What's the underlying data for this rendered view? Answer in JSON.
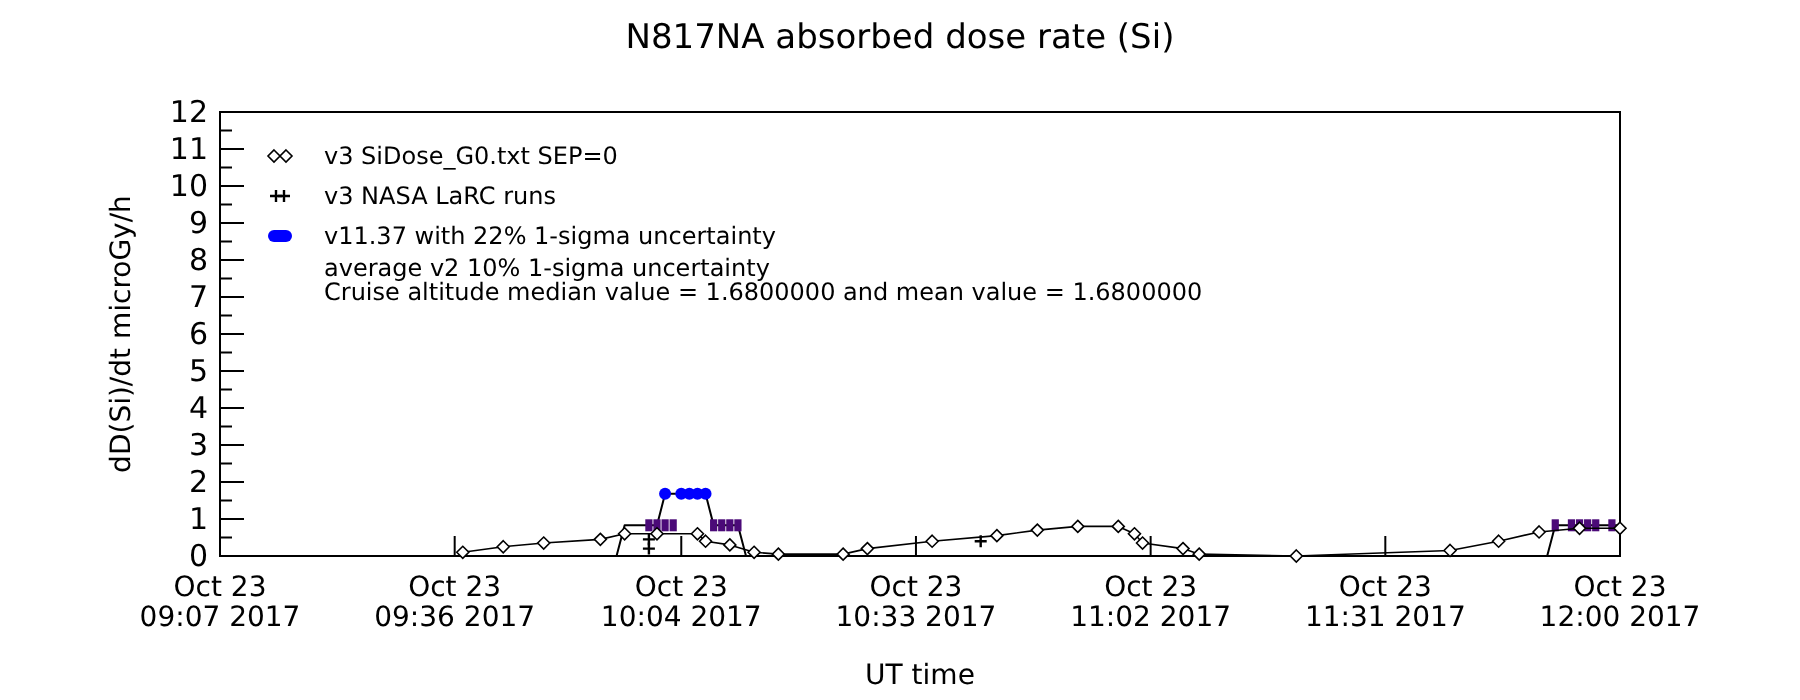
{
  "chart_data": {
    "type": "line",
    "title": "N817NA absorbed dose rate (Si)",
    "xlabel": "UT time",
    "ylabel": "dD(Si)/dt microGy/h",
    "annotations": [
      "average v2 10% 1-sigma uncertainty",
      "Cruise altitude median value = 1.6800000 and mean value = 1.6800000"
    ],
    "xlim": [
      "2017-10-23T09:07",
      "2017-10-23T12:00"
    ],
    "xticks": [
      {
        "value": "2017-10-23T09:07",
        "label": "Oct 23\n09:07 2017"
      },
      {
        "value": "2017-10-23T09:36",
        "label": "Oct 23\n09:36 2017"
      },
      {
        "value": "2017-10-23T10:04",
        "label": "Oct 23\n10:04 2017"
      },
      {
        "value": "2017-10-23T10:33",
        "label": "Oct 23\n10:33 2017"
      },
      {
        "value": "2017-10-23T11:02",
        "label": "Oct 23\n11:02 2017"
      },
      {
        "value": "2017-10-23T11:31",
        "label": "Oct 23\n11:31 2017"
      },
      {
        "value": "2017-10-23T12:00",
        "label": "Oct 23\n12:00 2017"
      }
    ],
    "ylim": [
      0,
      12
    ],
    "yticks": [
      0,
      {
        "value": 0.5,
        "label": null
      },
      1,
      {
        "value": 1.5,
        "label": null
      },
      2,
      {
        "value": 2.5,
        "label": null
      },
      3,
      {
        "value": 3.5,
        "label": null
      },
      4,
      {
        "value": 4.5,
        "label": null
      },
      5,
      {
        "value": 5.5,
        "label": null
      },
      6,
      {
        "value": 6.5,
        "label": null
      },
      7,
      {
        "value": 7.5,
        "label": null
      },
      8,
      {
        "value": 8.5,
        "label": null
      },
      9,
      {
        "value": 9.5,
        "label": null
      },
      10,
      {
        "value": 10.5,
        "label": null
      },
      11,
      {
        "value": 11.5,
        "label": null
      },
      12
    ],
    "grid": false,
    "legend": "top left",
    "series": [
      {
        "name": "v3 SiDose_G0.txt SEP=0",
        "color": "#000000",
        "marker": "diamond",
        "line_style": "solid",
        "x": [
          "2017-10-23T09:37",
          "2017-10-23T09:42",
          "2017-10-23T09:47",
          "2017-10-23T09:54",
          "2017-10-23T09:57",
          "2017-10-23T10:01",
          "2017-10-23T10:06",
          "2017-10-23T10:07",
          "2017-10-23T10:10",
          "2017-10-23T10:13",
          "2017-10-23T10:16",
          "2017-10-23T10:24",
          "2017-10-23T10:27",
          "2017-10-23T10:35",
          "2017-10-23T10:43",
          "2017-10-23T10:48",
          "2017-10-23T10:53",
          "2017-10-23T10:58",
          "2017-10-23T11:00",
          "2017-10-23T11:01",
          "2017-10-23T11:06",
          "2017-10-23T11:08",
          "2017-10-23T11:20",
          "2017-10-23T11:39",
          "2017-10-23T11:45",
          "2017-10-23T11:50",
          "2017-10-23T11:55",
          "2017-10-23T12:00"
        ],
        "values": [
          0.1,
          0.25,
          0.35,
          0.45,
          0.6,
          0.6,
          0.6,
          0.4,
          0.3,
          0.1,
          0.05,
          0.05,
          0.2,
          0.4,
          0.55,
          0.7,
          0.8,
          0.8,
          0.6,
          0.35,
          0.2,
          0.05,
          0.0,
          0.15,
          0.4,
          0.65,
          0.75,
          0.75
        ]
      },
      {
        "name": "v3 NASA LaRC runs",
        "type": "scatter",
        "color": "#000000",
        "marker": "cross",
        "x": [
          "2017-10-23T10:00",
          "2017-10-23T10:00",
          "2017-10-23T10:41"
        ],
        "values": [
          0.45,
          0.2,
          0.4
        ]
      },
      {
        "name": "v11.37 with 22% 1-sigma uncertainty",
        "type": "scatter",
        "color": "#0000ff",
        "marker": "circle",
        "x": [
          "2017-10-23T10:02",
          "2017-10-23T10:04",
          "2017-10-23T10:05",
          "2017-10-23T10:06",
          "2017-10-23T10:07"
        ],
        "values": [
          1.68,
          1.68,
          1.68,
          1.68,
          1.68
        ]
      },
      {
        "type": "scatter",
        "color": "#4b0a78",
        "marker": "square",
        "x": [
          "2017-10-23T10:00",
          "2017-10-23T10:01",
          "2017-10-23T10:02",
          "2017-10-23T10:03",
          "2017-10-23T10:08",
          "2017-10-23T10:09",
          "2017-10-23T10:10",
          "2017-10-23T10:11",
          "2017-10-23T11:52",
          "2017-10-23T11:54",
          "2017-10-23T11:55",
          "2017-10-23T11:56",
          "2017-10-23T11:57",
          "2017-10-23T11:59"
        ],
        "values": [
          0.83,
          0.83,
          0.83,
          0.83,
          0.83,
          0.83,
          0.83,
          0.83,
          0.83,
          0.83,
          0.83,
          0.83,
          0.83,
          0.83
        ]
      },
      {
        "color": "#000000",
        "marker": "none",
        "line_style": "solid",
        "x": [
          "2017-10-23T09:14",
          "2017-10-23T09:56",
          "2017-10-23T09:57",
          "2017-10-23T10:01",
          "2017-10-23T10:02",
          "2017-10-23T10:07",
          "2017-10-23T10:08",
          "2017-10-23T10:11",
          "2017-10-23T10:12",
          "2017-10-23T11:51",
          "2017-10-23T11:52",
          "2017-10-23T12:00"
        ],
        "values": [
          0,
          0,
          0.83,
          0.83,
          1.68,
          1.68,
          0.83,
          0.83,
          0,
          0,
          0.83,
          0.83
        ]
      }
    ]
  }
}
